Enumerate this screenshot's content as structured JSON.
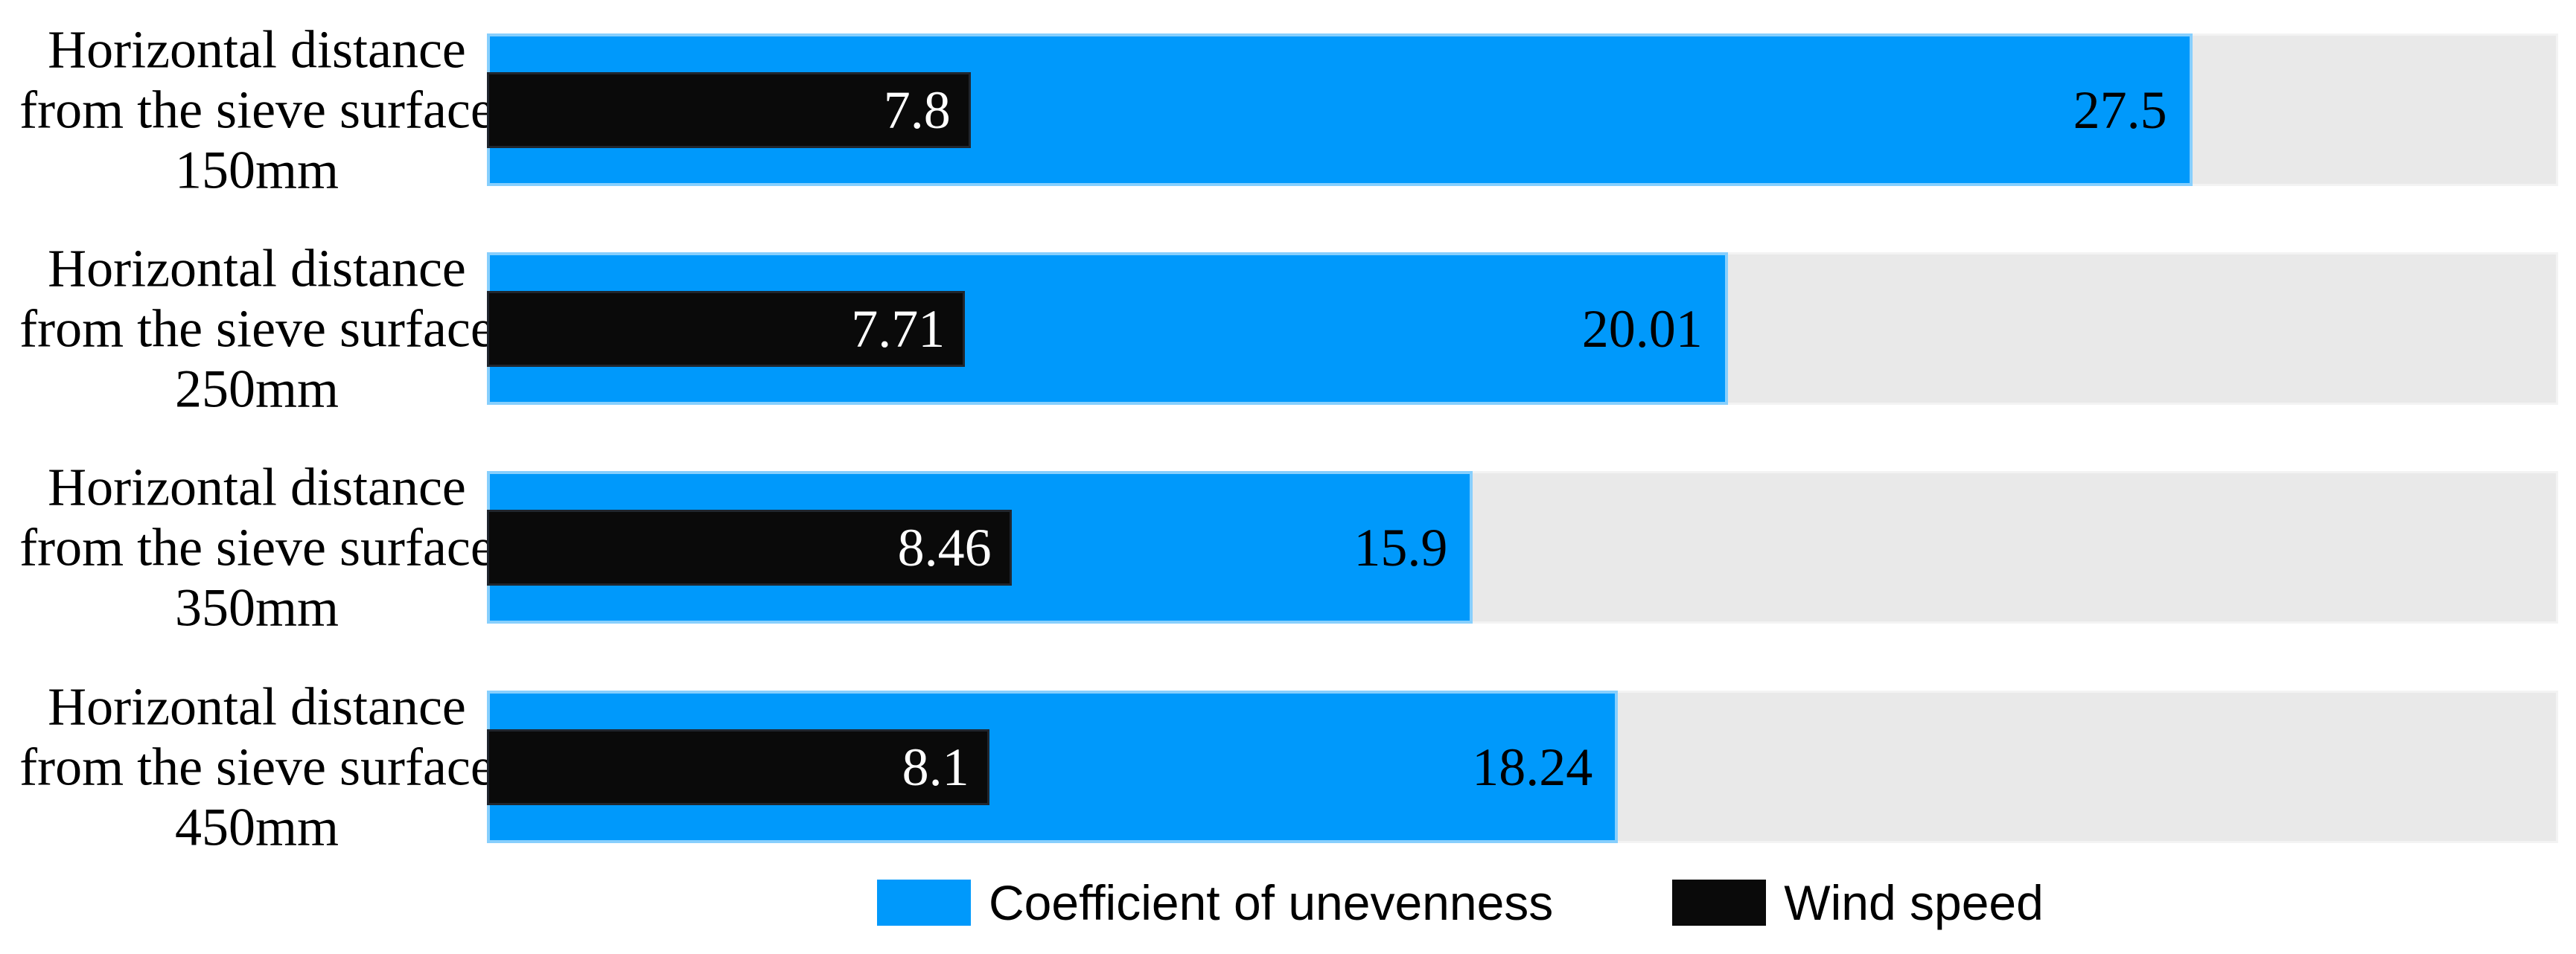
{
  "chart_data": {
    "type": "bar",
    "orientation": "horizontal",
    "title": "",
    "xlabel": "",
    "ylabel": "",
    "xlim": [
      0,
      33.4
    ],
    "grid": false,
    "track_color": "#e9e9e9",
    "value_labels_position": "inside-end",
    "legend_position": "bottom",
    "categories": [
      {
        "lines": [
          "Horizontal distance",
          "from the sieve surface",
          "150mm"
        ]
      },
      {
        "lines": [
          "Horizontal distance",
          "from the sieve surface",
          "250mm"
        ]
      },
      {
        "lines": [
          "Horizontal distance",
          "from the sieve surface",
          "350mm"
        ]
      },
      {
        "lines": [
          "Horizontal distance",
          "from the sieve surface",
          "450mm"
        ]
      }
    ],
    "series": [
      {
        "name": "Coefficient of unevenness",
        "color": "#0099fb",
        "label_color": "#000000",
        "values": [
          27.5,
          20.01,
          15.9,
          18.24
        ]
      },
      {
        "name": "Wind speed",
        "color": "#0a0a0a",
        "label_color": "#ffffff",
        "values": [
          7.8,
          7.71,
          8.46,
          8.1
        ]
      }
    ]
  },
  "legend": {
    "items": [
      {
        "label": "Coefficient of unevenness",
        "color": "#0099fb"
      },
      {
        "label": "Wind speed",
        "color": "#0a0a0a"
      }
    ]
  }
}
